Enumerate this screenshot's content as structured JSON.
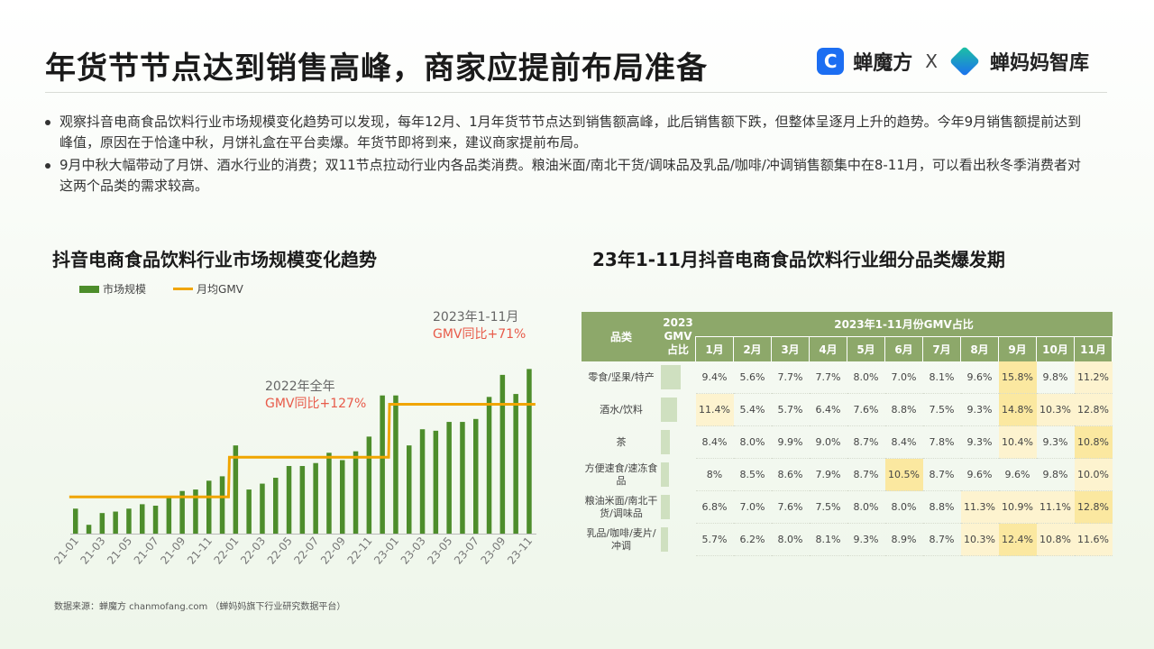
{
  "header": {
    "title": "年货节节点达到销售高峰，商家应提前布局准备",
    "logo_primary": "蝉魔方",
    "logo_separator": "X",
    "logo_secondary": "蝉妈妈智库"
  },
  "bullets": [
    "观察抖音电商食品饮料行业市场规模变化趋势可以发现，每年12月、1月年货节节点达到销售额高峰，此后销售额下跌，但整体呈逐月上升的趋势。今年9月销售额提前达到峰值，原因在于恰逢中秋，月饼礼盒在平台卖爆。年货节即将到来，建议商家提前布局。",
    "9月中秋大幅带动了月饼、酒水行业的消费；双11节点拉动行业内各品类消费。粮油米面/南北干货/调味品及乳品/咖啡/冲调销售额集中在8-11月，可以看出秋冬季消费者对这两个品类的需求较高。"
  ],
  "left_title": "抖音电商食品饮料行业市场规模变化趋势",
  "right_title": "23年1-11月抖音电商食品饮料行业细分品类爆发期",
  "annotations": {
    "a2023_line1": "2023年1-11月",
    "a2023_line2": "GMV同比+71%",
    "a2022_line1": "2022年全年",
    "a2022_line2": "GMV同比+127%"
  },
  "source": "数据来源：蝉魔方 chanmofang.com （蝉妈妈旗下行业研究数据平台）",
  "colors": {
    "bar": "#4d8d2b",
    "line": "#f0a500",
    "header": "#8da86a",
    "highlight": "#fbe8a0"
  },
  "chart_data": [
    {
      "type": "bar",
      "title": "抖音电商食品饮料行业市场规模变化趋势",
      "legend": [
        "市场规模",
        "月均GMV"
      ],
      "legend_position": "top-left",
      "categories": [
        "21-01",
        "21-02",
        "21-03",
        "21-04",
        "21-05",
        "21-06",
        "21-07",
        "21-08",
        "21-09",
        "21-10",
        "21-11",
        "21-12",
        "22-01",
        "22-02",
        "22-03",
        "22-04",
        "22-05",
        "22-06",
        "22-07",
        "22-08",
        "22-09",
        "22-10",
        "22-11",
        "22-12",
        "23-01",
        "23-02",
        "23-03",
        "23-04",
        "23-05",
        "23-06",
        "23-07",
        "23-08",
        "23-09",
        "23-10",
        "23-11"
      ],
      "tick_labels": [
        "21-01",
        "21-03",
        "21-05",
        "21-07",
        "21-09",
        "21-11",
        "22-01",
        "22-03",
        "22-05",
        "22-07",
        "22-09",
        "22-11",
        "23-01",
        "23-03",
        "23-05",
        "23-07",
        "23-09",
        "23-11"
      ],
      "series": [
        {
          "name": "市场规模",
          "type": "bar",
          "values": [
            17,
            6,
            14,
            15,
            17,
            20,
            19,
            25,
            29,
            30,
            36,
            39,
            60,
            30,
            34,
            38,
            46,
            46,
            48,
            55,
            50,
            56,
            66,
            94,
            94,
            60,
            71,
            70,
            76,
            76,
            78,
            93,
            108,
            95,
            112
          ]
        },
        {
          "name": "月均GMV",
          "type": "line",
          "values": [
            25,
            25,
            25,
            25,
            25,
            25,
            25,
            25,
            25,
            25,
            25,
            25,
            52,
            52,
            52,
            52,
            52,
            52,
            52,
            52,
            52,
            52,
            52,
            52,
            88,
            88,
            88,
            88,
            88,
            88,
            88,
            88,
            88,
            88,
            88
          ]
        }
      ],
      "ylim": [
        0,
        130
      ],
      "grid": false
    },
    {
      "type": "table",
      "title": "23年1-11月抖音电商食品饮料行业细分品类爆发期",
      "header_category": "品类",
      "header_gmv": "2023 GMV 占比",
      "header_group": "2023年1-11月份GMV占比",
      "months": [
        "1月",
        "2月",
        "3月",
        "4月",
        "5月",
        "6月",
        "7月",
        "8月",
        "9月",
        "10月",
        "11月"
      ],
      "rows": [
        {
          "category": "零食/坚果/特产",
          "gmv_share": 0.28,
          "values": [
            "9.4%",
            "5.6%",
            "7.7%",
            "7.7%",
            "8.0%",
            "7.0%",
            "8.1%",
            "9.6%",
            "15.8%",
            "9.8%",
            "11.2%"
          ],
          "highlight": [
            0,
            0,
            0,
            0,
            0,
            0,
            0,
            0,
            2,
            0,
            1
          ]
        },
        {
          "category": "酒水/饮料",
          "gmv_share": 0.22,
          "values": [
            "11.4%",
            "5.4%",
            "5.7%",
            "6.4%",
            "7.6%",
            "8.8%",
            "7.5%",
            "9.3%",
            "14.8%",
            "10.3%",
            "12.8%"
          ],
          "highlight": [
            1,
            0,
            0,
            0,
            0,
            0,
            0,
            0,
            2,
            1,
            1
          ]
        },
        {
          "category": "茶",
          "gmv_share": 0.12,
          "values": [
            "8.4%",
            "8.0%",
            "9.9%",
            "9.0%",
            "8.7%",
            "8.4%",
            "7.8%",
            "9.3%",
            "10.4%",
            "9.3%",
            "10.8%"
          ],
          "highlight": [
            0,
            0,
            0,
            0,
            0,
            0,
            0,
            0,
            1,
            0,
            2
          ]
        },
        {
          "category": "方便速食/速冻食品",
          "gmv_share": 0.11,
          "values": [
            "8%",
            "8.5%",
            "8.6%",
            "7.9%",
            "8.7%",
            "10.5%",
            "8.7%",
            "9.6%",
            "9.6%",
            "9.8%",
            "10.0%"
          ],
          "highlight": [
            0,
            0,
            0,
            0,
            0,
            2,
            0,
            0,
            0,
            0,
            1
          ]
        },
        {
          "category": "粮油米面/南北干货/调味品",
          "gmv_share": 0.12,
          "values": [
            "6.8%",
            "7.0%",
            "7.6%",
            "7.5%",
            "8.0%",
            "8.0%",
            "8.8%",
            "11.3%",
            "10.9%",
            "11.1%",
            "12.8%"
          ],
          "highlight": [
            0,
            0,
            0,
            0,
            0,
            0,
            0,
            1,
            1,
            1,
            2
          ]
        },
        {
          "category": "乳品/咖啡/麦片/冲调",
          "gmv_share": 0.1,
          "values": [
            "5.7%",
            "6.2%",
            "8.0%",
            "8.1%",
            "9.3%",
            "8.9%",
            "8.7%",
            "10.3%",
            "12.4%",
            "10.8%",
            "11.6%"
          ],
          "highlight": [
            0,
            0,
            0,
            0,
            0,
            0,
            0,
            1,
            2,
            1,
            1
          ]
        }
      ]
    }
  ]
}
